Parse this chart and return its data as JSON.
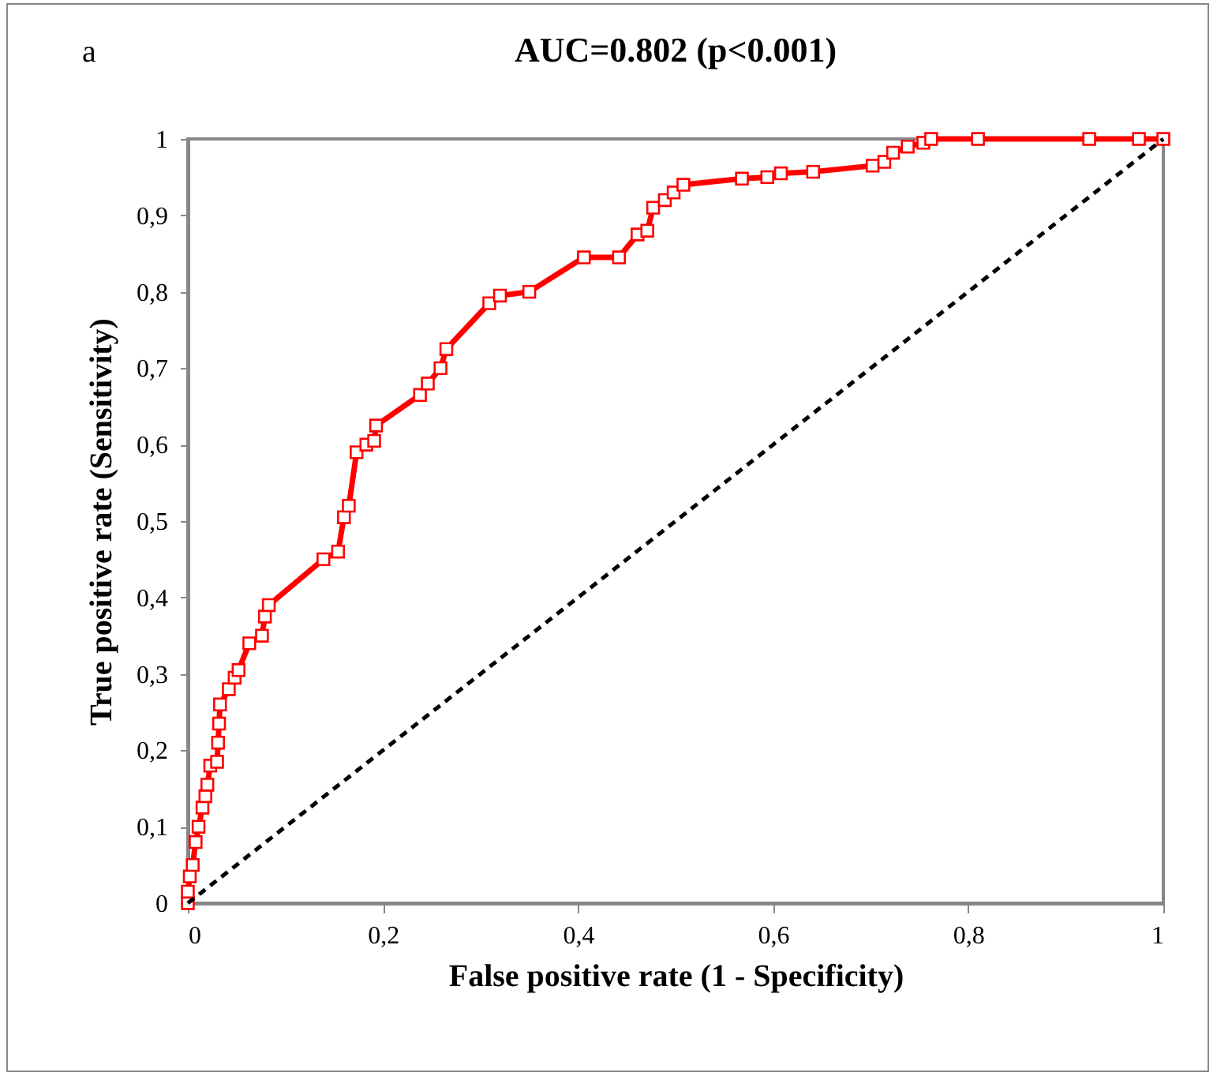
{
  "chart_data": {
    "type": "line",
    "title": "AUC=0.802 (p<0.001)",
    "xlabel": "False positive rate (1 - Specificity)",
    "ylabel": "True positive rate (Sensitivity)",
    "annotations": [
      "a"
    ],
    "xlim": [
      0,
      1
    ],
    "ylim": [
      0,
      1
    ],
    "xticks": [
      0,
      {
        "value": 0.2,
        "label": "0,2"
      },
      {
        "value": 0.4,
        "label": "0,4"
      },
      {
        "value": 0.6,
        "label": "0,6"
      },
      {
        "value": 0.8,
        "label": "0,8"
      },
      1
    ],
    "yticks": [
      0,
      {
        "value": 0.1,
        "label": "0,1"
      },
      {
        "value": 0.2,
        "label": "0,2"
      },
      {
        "value": 0.3,
        "label": "0,3"
      },
      {
        "value": 0.4,
        "label": "0,4"
      },
      {
        "value": 0.5,
        "label": "0,5"
      },
      {
        "value": 0.6,
        "label": "0,6"
      },
      {
        "value": 0.7,
        "label": "0,7"
      },
      {
        "value": 0.8,
        "label": "0,8"
      },
      {
        "value": 0.9,
        "label": "0,9"
      },
      1
    ],
    "grid": false,
    "series": [
      {
        "color": "#ff0000",
        "marker": "square",
        "line_style": "solid",
        "x": [
          0,
          0,
          0.002,
          0.005,
          0.008,
          0.011,
          0.015,
          0.018,
          0.02,
          0.023,
          0.03,
          0.031,
          0.032,
          0.033,
          0.042,
          0.048,
          0.052,
          0.063,
          0.076,
          0.079,
          0.083,
          0.139,
          0.154,
          0.16,
          0.165,
          0.173,
          0.183,
          0.191,
          0.193,
          0.238,
          0.246,
          0.259,
          0.265,
          0.309,
          0.32,
          0.35,
          0.406,
          0.442,
          0.461,
          0.471,
          0.477,
          0.489,
          0.498,
          0.508,
          0.568,
          0.594,
          0.608,
          0.641,
          0.702,
          0.714,
          0.723,
          0.738,
          0.754,
          0.762,
          0.81,
          0.924,
          0.975,
          1
        ],
        "values": [
          0,
          0.015,
          0.035,
          0.05,
          0.08,
          0.1,
          0.125,
          0.14,
          0.155,
          0.18,
          0.185,
          0.21,
          0.235,
          0.26,
          0.28,
          0.295,
          0.305,
          0.34,
          0.35,
          0.375,
          0.39,
          0.45,
          0.46,
          0.505,
          0.52,
          0.59,
          0.6,
          0.605,
          0.625,
          0.665,
          0.68,
          0.7,
          0.725,
          0.785,
          0.795,
          0.8,
          0.845,
          0.845,
          0.875,
          0.88,
          0.91,
          0.92,
          0.93,
          0.94,
          0.948,
          0.95,
          0.955,
          0.957,
          0.965,
          0.97,
          0.982,
          0.99,
          0.995,
          1,
          1,
          1,
          1,
          1
        ]
      },
      {
        "type": "line",
        "color": "#000000",
        "marker": "none",
        "line_style": "dashed",
        "x": [
          0,
          1
        ],
        "values": [
          0,
          1
        ]
      }
    ]
  }
}
